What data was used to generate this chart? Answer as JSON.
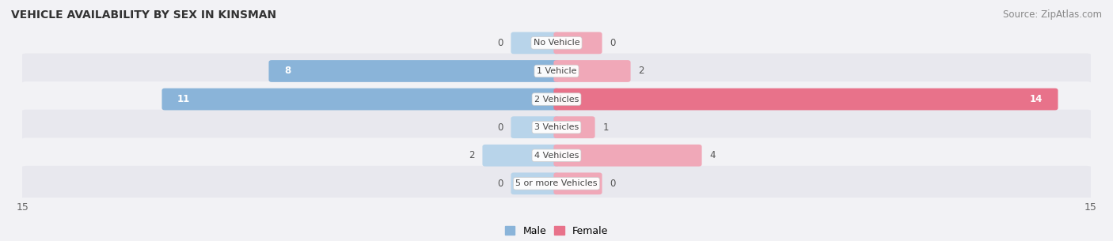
{
  "title": "VEHICLE AVAILABILITY BY SEX IN KINSMAN",
  "source": "Source: ZipAtlas.com",
  "categories": [
    "No Vehicle",
    "1 Vehicle",
    "2 Vehicles",
    "3 Vehicles",
    "4 Vehicles",
    "5 or more Vehicles"
  ],
  "male_values": [
    0,
    8,
    11,
    0,
    2,
    0
  ],
  "female_values": [
    0,
    2,
    14,
    1,
    4,
    0
  ],
  "male_color": "#8ab4d9",
  "male_color_light": "#b8d4ea",
  "female_color": "#e8728a",
  "female_color_light": "#f0a8b8",
  "male_label": "Male",
  "female_label": "Female",
  "xlim": 15,
  "row_colors": [
    "#f2f2f5",
    "#e8e8ee"
  ],
  "title_fontsize": 10,
  "source_fontsize": 8.5,
  "tick_fontsize": 9,
  "bar_label_fontsize": 8.5,
  "category_fontsize": 8,
  "legend_fontsize": 9
}
